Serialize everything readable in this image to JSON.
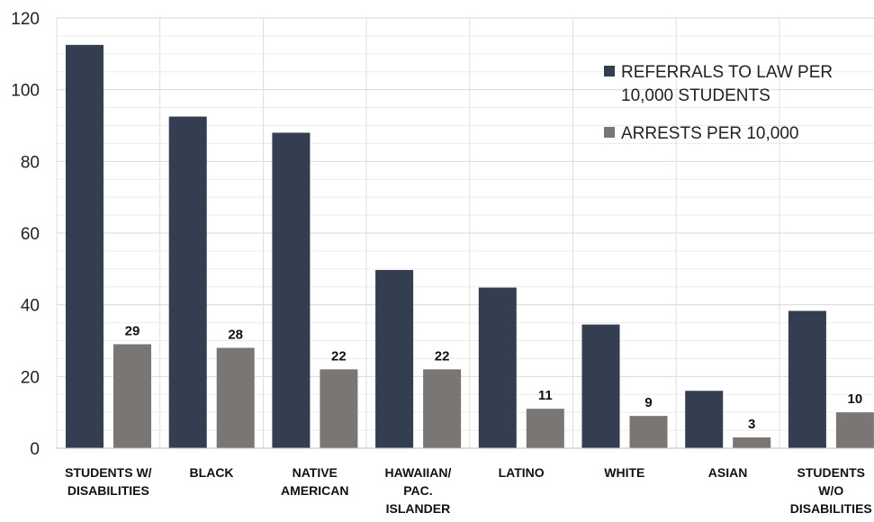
{
  "chart_data": {
    "type": "bar",
    "categories": [
      [
        "STUDENTS W/",
        "DISABILITIES"
      ],
      [
        "BLACK"
      ],
      [
        "NATIVE",
        "AMERICAN"
      ],
      [
        "HAWAIIAN/",
        "PAC.",
        "ISLANDER"
      ],
      [
        "LATINO"
      ],
      [
        "WHITE"
      ],
      [
        "ASIAN"
      ],
      [
        "STUDENTS",
        "W/O",
        "DISABILITIES"
      ]
    ],
    "series": [
      {
        "name": [
          "REFERRALS TO LAW PER",
          "10,000 STUDENTS"
        ],
        "color": "#343e51",
        "values": [
          112.5,
          92.5,
          88,
          49.7,
          44.8,
          34.5,
          16,
          38.3
        ],
        "show_labels": false
      },
      {
        "name": [
          "ARRESTS PER 10,000"
        ],
        "color": "#7a7674",
        "values": [
          29,
          28,
          22,
          22,
          11,
          9,
          3,
          10
        ],
        "show_labels": true
      }
    ],
    "yticks": [
      "0",
      "20",
      "40",
      "60",
      "80",
      "100",
      "120"
    ],
    "ylim": [
      0,
      120
    ],
    "grid": true,
    "legend_position": "top-right"
  }
}
